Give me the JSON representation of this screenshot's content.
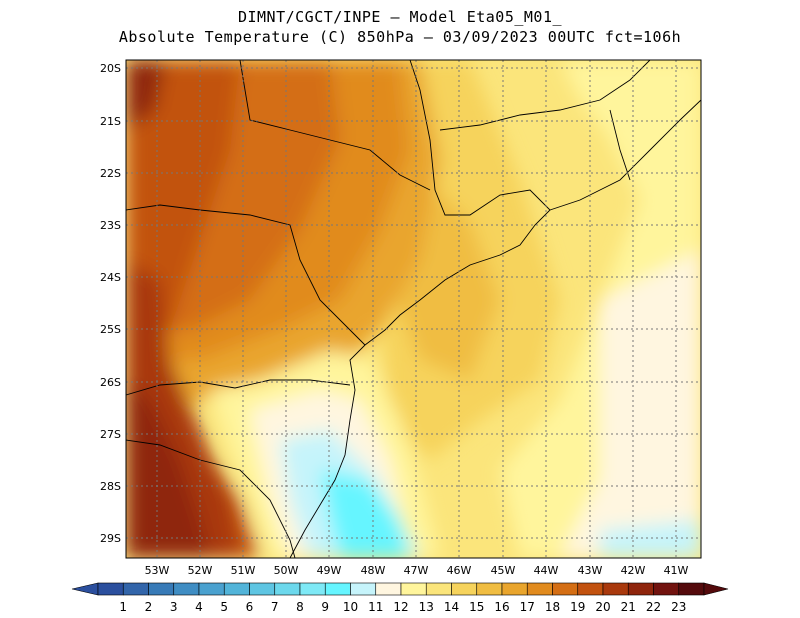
{
  "title_line1": "DIMNT/CGCT/INPE —  Model Eta05_M01_",
  "title_line2": "Absolute Temperature (C) 850hPa —  03/09/2023 00UTC fct=106h",
  "lat_ticks": [
    "20S",
    "21S",
    "22S",
    "23S",
    "24S",
    "25S",
    "26S",
    "27S",
    "28S",
    "29S"
  ],
  "lon_ticks": [
    "53W",
    "52W",
    "51W",
    "50W",
    "49W",
    "48W",
    "47W",
    "46W",
    "45W",
    "44W",
    "43W",
    "42W",
    "41W"
  ],
  "colorbar": {
    "labels": [
      "1",
      "2",
      "3",
      "4",
      "5",
      "6",
      "7",
      "8",
      "9",
      "10",
      "11",
      "12",
      "13",
      "14",
      "15",
      "16",
      "17",
      "18",
      "19",
      "20",
      "21",
      "22",
      "23"
    ],
    "colors": [
      "#2b4f9e",
      "#3265aa",
      "#377ab7",
      "#3f8dc3",
      "#4aa1cf",
      "#52b4d9",
      "#5ec5e2",
      "#6cd8ec",
      "#7ee9f6",
      "#66f5ff",
      "#c6f4fb",
      "#fff6e0",
      "#fff59c",
      "#fbe57b",
      "#f6d35c",
      "#f0bd42",
      "#e9a52d",
      "#e18b1e",
      "#d46e14",
      "#c2520f",
      "#a9390d",
      "#8f250c",
      "#72130f",
      "#540a0c"
    ]
  }
}
